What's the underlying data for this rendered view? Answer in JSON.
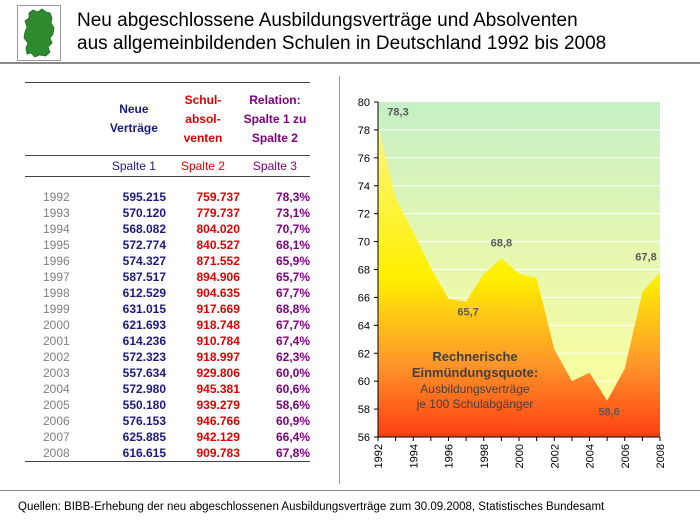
{
  "title": {
    "line1": "Neu abgeschlossene Ausbildungsverträge und Absolventen",
    "line2": "aus allgemeinbildenden Schulen in Deutschland 1992 bis 2008"
  },
  "table": {
    "headers": {
      "col1": [
        "Neue",
        "Verträge"
      ],
      "col2": [
        "Schul-",
        "absol-",
        "venten"
      ],
      "col3": [
        "Relation:",
        "Spalte 1 zu",
        "Spalte 2"
      ]
    },
    "subheaders": [
      "Spalte 1",
      "Spalte 2",
      "Spalte 3"
    ],
    "rows": [
      [
        "1992",
        "595.215",
        "759.737",
        "78,3%"
      ],
      [
        "1993",
        "570.120",
        "779.737",
        "73,1%"
      ],
      [
        "1994",
        "568.082",
        "804.020",
        "70,7%"
      ],
      [
        "1995",
        "572.774",
        "840.527",
        "68,1%"
      ],
      [
        "1996",
        "574.327",
        "871.552",
        "65,9%"
      ],
      [
        "1997",
        "587.517",
        "894.906",
        "65,7%"
      ],
      [
        "1998",
        "612.529",
        "904.635",
        "67,7%"
      ],
      [
        "1999",
        "631.015",
        "917.669",
        "68,8%"
      ],
      [
        "2000",
        "621.693",
        "918.748",
        "67,7%"
      ],
      [
        "2001",
        "614.236",
        "910.784",
        "67,4%"
      ],
      [
        "2002",
        "572.323",
        "918.997",
        "62,3%"
      ],
      [
        "2003",
        "557.634",
        "929.806",
        "60,0%"
      ],
      [
        "2004",
        "572.980",
        "945.381",
        "60,6%"
      ],
      [
        "2005",
        "550.180",
        "939.279",
        "58,6%"
      ],
      [
        "2006",
        "576.153",
        "946.766",
        "60,9%"
      ],
      [
        "2007",
        "625.885",
        "942.129",
        "66,4%"
      ],
      [
        "2008",
        "616.615",
        "909.783",
        "67,8%"
      ]
    ]
  },
  "chart_data": {
    "type": "area",
    "x": [
      1992,
      1993,
      1994,
      1995,
      1996,
      1997,
      1998,
      1999,
      2000,
      2001,
      2002,
      2003,
      2004,
      2005,
      2006,
      2007,
      2008
    ],
    "series": [
      {
        "values": [
          78.3,
          73.1,
          70.7,
          68.1,
          65.9,
          65.7,
          67.7,
          68.8,
          67.7,
          67.4,
          62.3,
          60.0,
          60.6,
          58.6,
          60.9,
          66.4,
          67.8
        ]
      }
    ],
    "ylim": [
      56,
      80
    ],
    "yticks": [
      "56",
      "58",
      "60",
      "62",
      "64",
      "66",
      "68",
      "70",
      "72",
      "74",
      "76",
      "78",
      "80"
    ],
    "xticks": [
      "1992",
      "1994",
      "1996",
      "1998",
      "2000",
      "2002",
      "2004",
      "2006",
      "2008"
    ],
    "annotations": [
      {
        "text": "78,3",
        "x": 1992,
        "y": 78.3
      },
      {
        "text": "65,7",
        "x": 1997,
        "y": 65.7
      },
      {
        "text": "68,8",
        "x": 1999,
        "y": 68.8
      },
      {
        "text": "58,6",
        "x": 2005,
        "y": 58.6
      },
      {
        "text": "67,8",
        "x": 2008,
        "y": 67.8
      }
    ],
    "note": {
      "bold": [
        "Rechnerische",
        "Einmündungsquote:"
      ],
      "normal": [
        "Ausbildungsverträge",
        "je 100 Schulabgänger"
      ]
    },
    "colors": {
      "fill_top": "#f5f59a",
      "fill_bottom": "#ff4a1a",
      "bg_top": "#c6f0c6",
      "bg_bottom": "#ffff99",
      "label": "#5a5a5a"
    },
    "grid": true
  },
  "footer": "Quellen: BIBB-Erhebung der neu abgeschlossenen Ausbildungsverträge zum 30.09.2008, Statistisches Bundesamt"
}
